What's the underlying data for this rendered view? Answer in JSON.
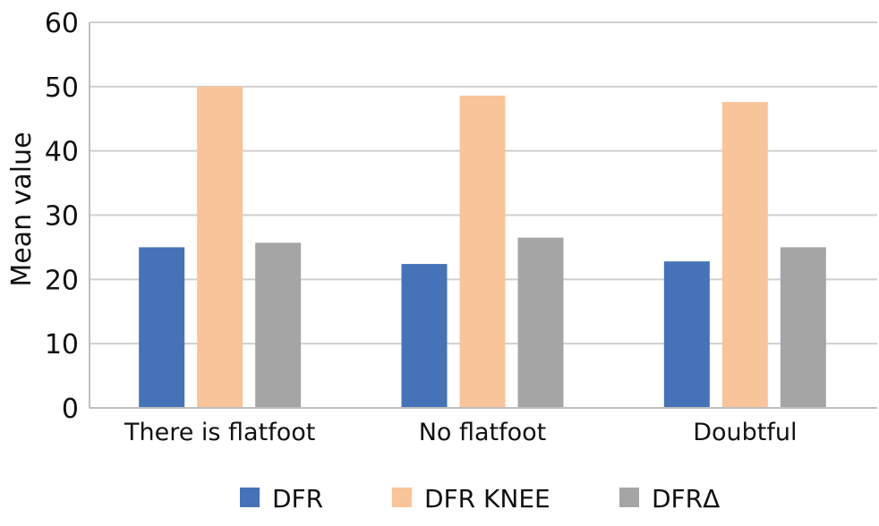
{
  "chart_data": {
    "type": "bar",
    "title": "",
    "xlabel": "",
    "ylabel": "Mean value",
    "ylim": [
      0,
      60
    ],
    "yticks": [
      0,
      10,
      20,
      30,
      40,
      50,
      60
    ],
    "grid": true,
    "legend_position": "bottom",
    "categories": [
      "There is flatfoot",
      "No flatfoot",
      "Doubtful"
    ],
    "series": [
      {
        "name": "DFR",
        "color": "#4672B8",
        "values": [
          25.0,
          22.4,
          22.8
        ]
      },
      {
        "name": "DFR KNEE",
        "color": "#F9C499",
        "values": [
          50.0,
          48.6,
          47.6
        ]
      },
      {
        "name": "DFRΔ",
        "color": "#A5A5A5",
        "values": [
          25.7,
          26.5,
          25.0
        ]
      }
    ]
  }
}
